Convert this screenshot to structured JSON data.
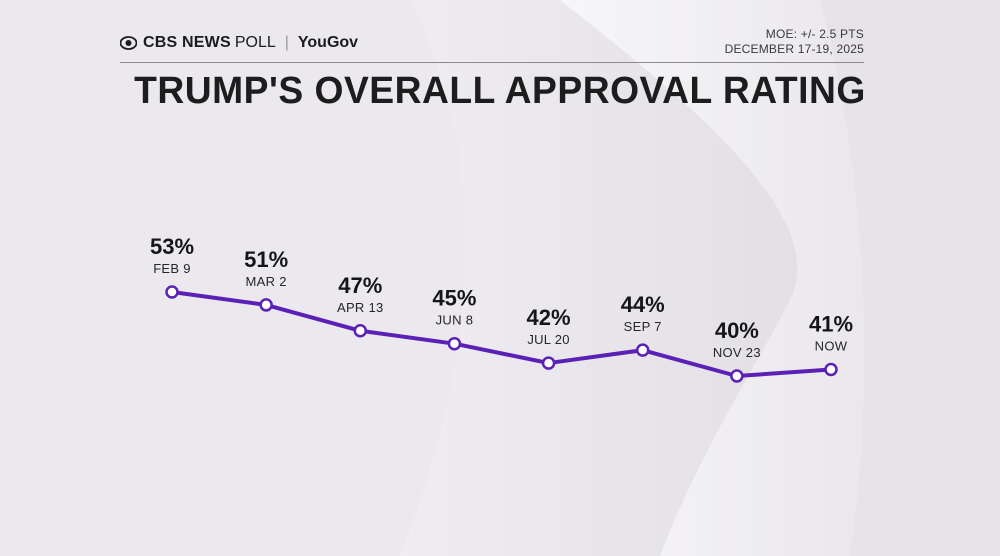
{
  "header": {
    "brand_name": "CBS NEWS",
    "brand_poll": "POLL",
    "separator": "|",
    "partner": "YouGov",
    "moe": "MOE: +/- 2.5 PTS",
    "field_dates": "DECEMBER 17-19, 2025"
  },
  "chart_data": {
    "type": "line",
    "title": "TRUMP'S OVERALL APPROVAL RATING",
    "categories": [
      "FEB 9",
      "MAR 2",
      "APR 13",
      "JUN 8",
      "JUL 20",
      "SEP 7",
      "NOV 23",
      "NOW"
    ],
    "values": [
      53,
      51,
      47,
      45,
      42,
      44,
      40,
      41
    ],
    "data_labels": [
      "53%",
      "51%",
      "47%",
      "45%",
      "42%",
      "44%",
      "40%",
      "41%"
    ],
    "ylim": [
      40,
      53
    ],
    "grid": false,
    "line_color": "#5b21b6",
    "marker_fill": "#ffffff"
  },
  "colors": {
    "background": "#ebe8ee",
    "text": "#1d1d1d",
    "accent": "#5b21b6"
  }
}
